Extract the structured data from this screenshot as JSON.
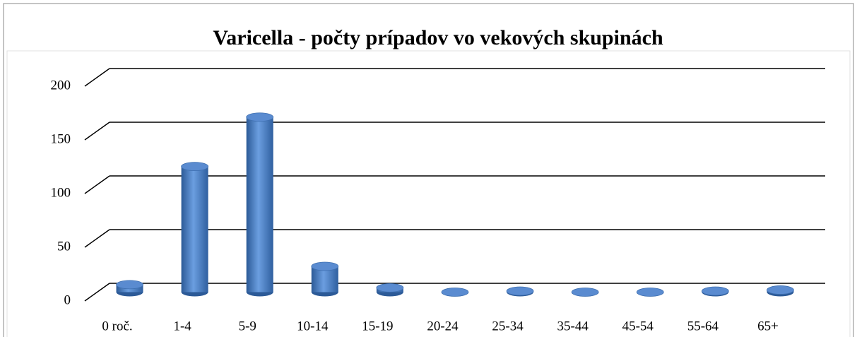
{
  "chart_data": {
    "type": "bar3d",
    "title": "Varicella - počty prípadov vo vekových skupinách",
    "categories": [
      "0 roč.",
      "1-4",
      "5-9",
      "10-14",
      "15-19",
      "20-24",
      "25-34",
      "35-44",
      "45-54",
      "55-64",
      "65+"
    ],
    "values": [
      7,
      117,
      163,
      24,
      4,
      0,
      1,
      0,
      0,
      1,
      2
    ],
    "color": "#4a7cc0",
    "ylim": [
      0,
      200
    ],
    "yticks": [
      0,
      50,
      100,
      150,
      200
    ],
    "grid": true
  }
}
